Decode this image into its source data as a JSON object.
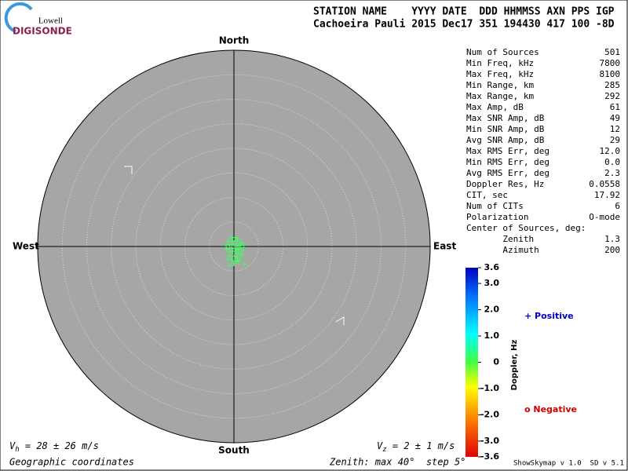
{
  "logo": {
    "top": "Lowell",
    "bottom": "DIGISONDE"
  },
  "header": {
    "line1": "STATION NAME    YYYY DATE  DDD HHMMSS AXN PPS IGP",
    "line2": "Cachoeira Pauli 2015 Dec17 351 194430 417 100 -8D"
  },
  "skymap": {
    "directions": {
      "north": "North",
      "south": "South",
      "west": "West",
      "east": "East"
    },
    "max_deg": 40,
    "step_deg": 5,
    "sources": {
      "x": [
        -0.6,
        0.2,
        0.9,
        1.5,
        -1.2,
        -0.3,
        0.5,
        1.2,
        2.0,
        -1.6,
        -0.9,
        0.0,
        0.7,
        1.4,
        -0.5,
        0.3,
        1.0,
        1.8,
        -1.0,
        -0.2,
        0.6,
        1.3,
        -0.7,
        0.1,
        0.8,
        1.6,
        -1.3,
        -0.4,
        0.4,
        1.1,
        0.0,
        -0.8,
        2.2,
        0.5,
        -1.5,
        0.9
      ],
      "y": [
        1.7,
        1.8,
        1.5,
        0.8,
        0.9,
        1.0,
        1.1,
        0.5,
        0.2,
        0.1,
        0.3,
        0.4,
        0.0,
        -0.2,
        -0.5,
        -0.4,
        -0.6,
        -0.9,
        -1.2,
        -1.1,
        -1.4,
        -1.6,
        -2.0,
        -2.1,
        -2.3,
        -1.9,
        -2.6,
        -2.8,
        -3.0,
        -2.7,
        -3.5,
        -3.9,
        -3.6,
        -0.8,
        -0.6,
        -3.2
      ]
    },
    "vh": {
      "symbol": "V",
      "sub": "h",
      "text": " = 28 ± 26 m/s"
    },
    "vz": {
      "symbol": "V",
      "sub": "z",
      "text": " = 2 ± 1 m/s"
    },
    "coords": "Geographic coordinates",
    "zenith_note": "Zenith: max 40°  step 5°"
  },
  "stats": [
    [
      "Num of Sources",
      "501"
    ],
    [
      "Min Freq, kHz",
      "7800"
    ],
    [
      "Max Freq, kHz",
      "8100"
    ],
    [
      "Min Range, km",
      "285"
    ],
    [
      "Max Range, km",
      "292"
    ],
    [
      "Max Amp, dB",
      "61"
    ],
    [
      "Max SNR Amp, dB",
      "49"
    ],
    [
      "Min SNR Amp, dB",
      "12"
    ],
    [
      "Avg SNR Amp, dB",
      "29"
    ],
    [
      "Max RMS Err, deg",
      "12.0"
    ],
    [
      "Min RMS Err, deg",
      "0.0"
    ],
    [
      "Avg RMS Err, deg",
      "2.3"
    ],
    [
      "Doppler Res, Hz",
      "0.0558"
    ],
    [
      "CIT, sec",
      "17.92"
    ],
    [
      "Num of CITs",
      "6"
    ],
    [
      "Polarization",
      "O-mode"
    ],
    [
      "Center of Sources, deg:",
      ""
    ],
    [
      "       Zenith",
      "1.3"
    ],
    [
      "       Azimuth",
      "200"
    ]
  ],
  "colorbar": {
    "title": "Doppler, Hz",
    "lim": [
      -3.6,
      3.6
    ],
    "ticks": [
      3.6,
      {
        "value": 3,
        "label": "3.0"
      },
      {
        "value": 2,
        "label": "2.0"
      },
      {
        "value": 1,
        "label": "1.0"
      },
      0,
      {
        "value": -1,
        "label": "-1.0"
      },
      {
        "value": -2,
        "label": "-2.0"
      },
      {
        "value": -3,
        "label": "-3.0"
      },
      -3.6
    ],
    "positive": "+ Positive",
    "negative": "o Negative"
  },
  "footer": "ShowSkymap v 1.0  SD v 5.1"
}
